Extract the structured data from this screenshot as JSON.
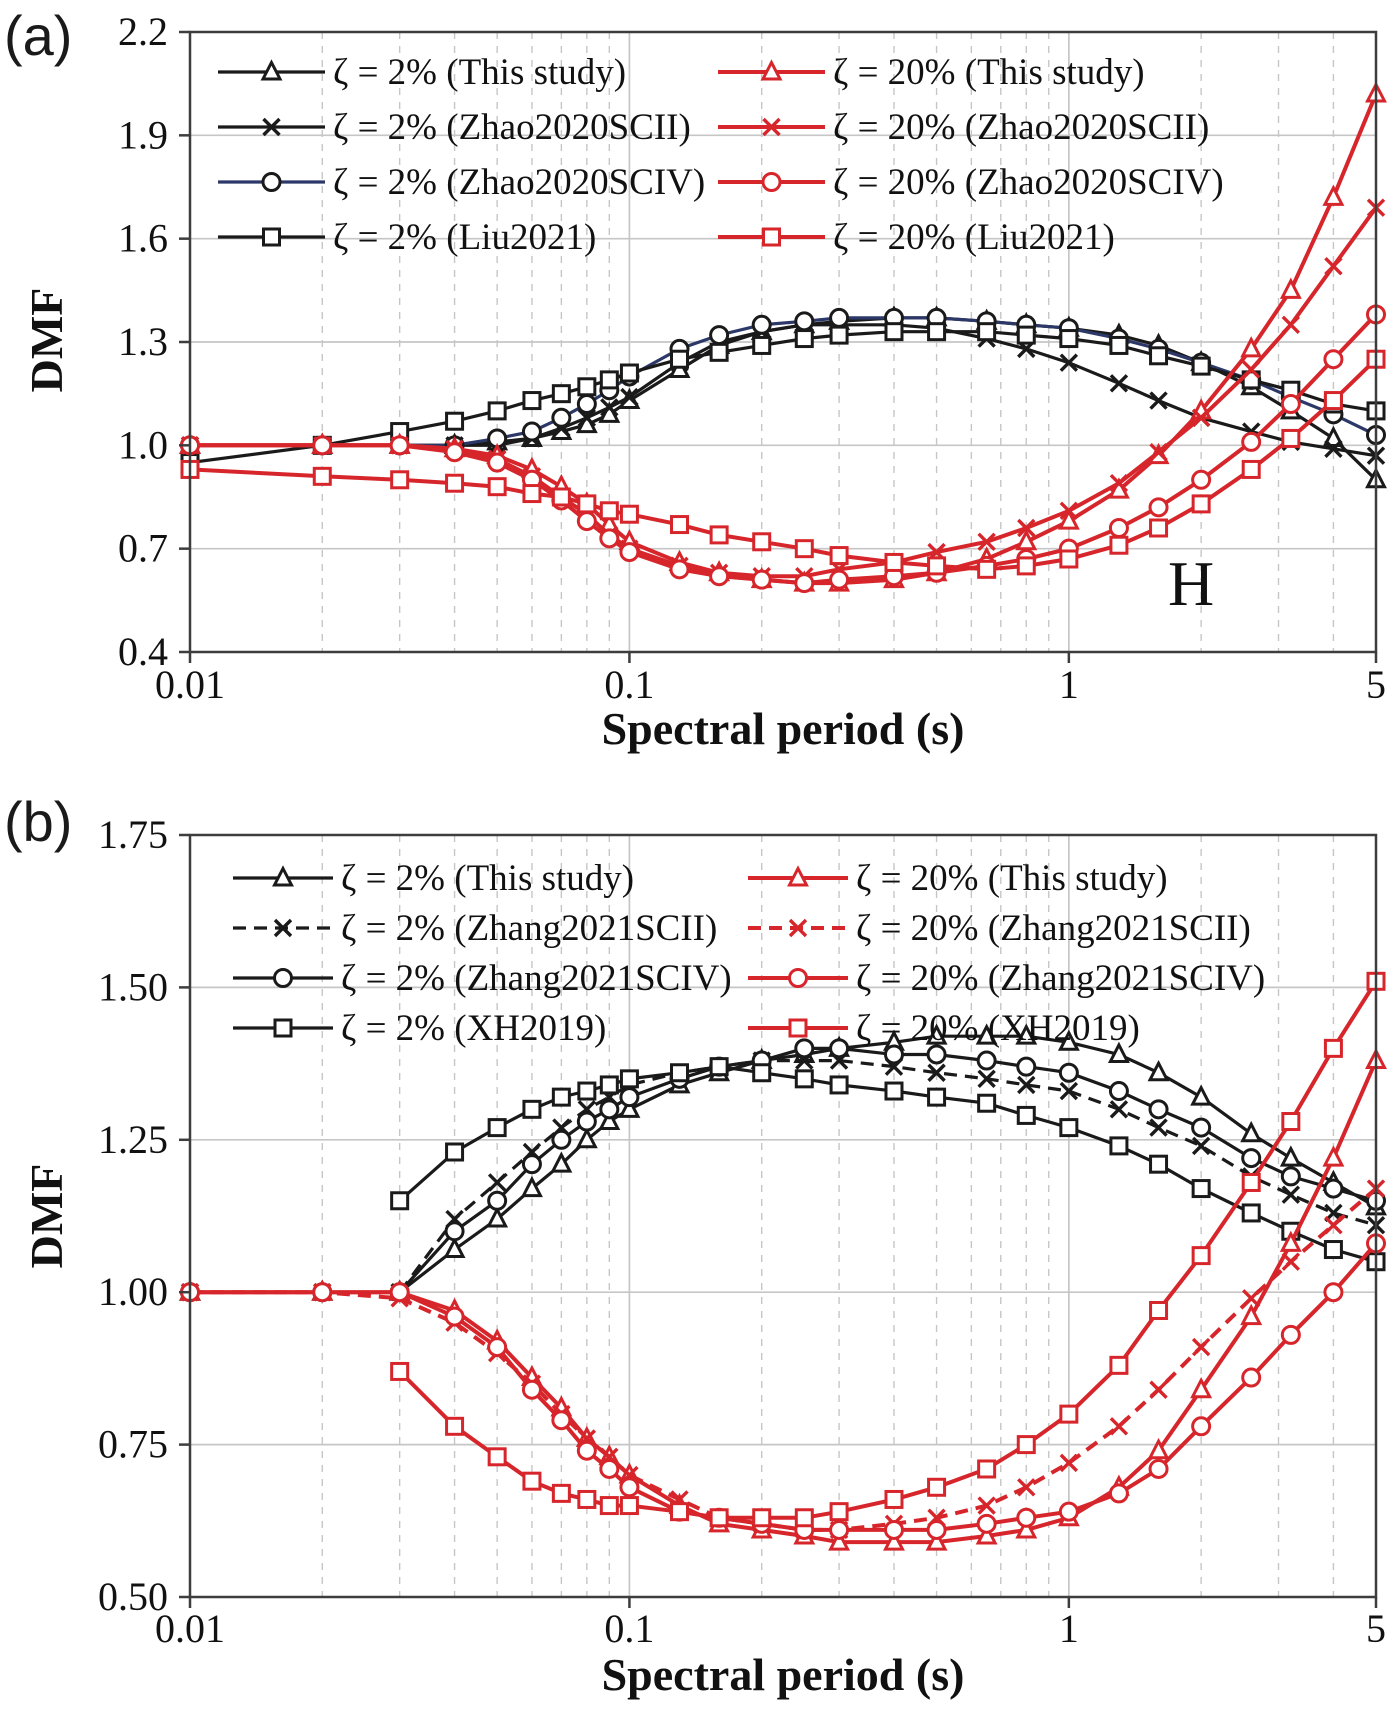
{
  "figure": {
    "background": "#ffffff",
    "panels": [
      "(a)",
      "(b)"
    ]
  },
  "colors": {
    "black": "#1a1a1a",
    "red": "#d7262b",
    "navy": "#2c3968",
    "grid": "#c6c6c6",
    "axis": "#3d3d3d",
    "text": "#111111"
  },
  "chart_data": [
    {
      "panel": "(a)",
      "type": "line",
      "x_scale": "log",
      "xlabel": "Spectral period (s)",
      "ylabel": "DMF",
      "corner_label": "H",
      "xlim": [
        0.01,
        5
      ],
      "ylim": [
        0.4,
        2.2
      ],
      "xticks": [
        0.01,
        0.1,
        1,
        5
      ],
      "xtick_labels": [
        "0.01",
        "0.1",
        "1",
        "5"
      ],
      "yticks": [
        0.4,
        0.7,
        1.0,
        1.3,
        1.6,
        1.9,
        2.2
      ],
      "ytick_labels": [
        "0.4",
        "0.7",
        "1.0",
        "1.3",
        "1.6",
        "1.9",
        "2.2"
      ],
      "grid": "major-solid-minor-dashed",
      "legend": {
        "position": "top-inside",
        "columns": 2
      },
      "x": [
        0.01,
        0.02,
        0.03,
        0.04,
        0.05,
        0.06,
        0.07,
        0.08,
        0.09,
        0.1,
        0.13,
        0.16,
        0.2,
        0.25,
        0.3,
        0.4,
        0.5,
        0.65,
        0.8,
        1.0,
        1.3,
        1.6,
        2.0,
        2.6,
        3.2,
        4.0,
        5.0
      ],
      "series": [
        {
          "name": "ζ = 2% (This study)",
          "color": "black",
          "marker": "triangle",
          "line": "solid",
          "values": [
            1.0,
            1.0,
            1.0,
            1.0,
            1.01,
            1.02,
            1.04,
            1.06,
            1.09,
            1.13,
            1.22,
            1.29,
            1.33,
            1.35,
            1.36,
            1.37,
            1.37,
            1.36,
            1.35,
            1.34,
            1.32,
            1.29,
            1.24,
            1.17,
            1.1,
            1.02,
            0.9
          ]
        },
        {
          "name": "ζ = 2% (Zhao2020SCII)",
          "color": "black",
          "marker": "x",
          "line": "solid",
          "values": [
            1.0,
            1.0,
            1.0,
            1.0,
            1.0,
            1.02,
            1.05,
            1.08,
            1.11,
            1.14,
            1.24,
            1.3,
            1.33,
            1.35,
            1.35,
            1.35,
            1.34,
            1.31,
            1.28,
            1.24,
            1.18,
            1.13,
            1.08,
            1.04,
            1.01,
            0.99,
            0.97
          ]
        },
        {
          "name": "ζ = 2% (Zhao2020SCIV)",
          "color": "navy",
          "marker_color": "black",
          "marker": "circle",
          "line": "solid",
          "values": [
            1.0,
            1.0,
            1.0,
            1.0,
            1.02,
            1.04,
            1.08,
            1.12,
            1.16,
            1.2,
            1.28,
            1.32,
            1.35,
            1.36,
            1.37,
            1.37,
            1.37,
            1.36,
            1.35,
            1.34,
            1.31,
            1.28,
            1.24,
            1.19,
            1.14,
            1.09,
            1.03
          ]
        },
        {
          "name": "ζ = 2% (Liu2021)",
          "color": "black",
          "marker": "square",
          "line": "solid",
          "values": [
            0.95,
            1.0,
            1.04,
            1.07,
            1.1,
            1.13,
            1.15,
            1.17,
            1.19,
            1.21,
            1.25,
            1.27,
            1.29,
            1.31,
            1.32,
            1.33,
            1.33,
            1.33,
            1.32,
            1.31,
            1.29,
            1.26,
            1.23,
            1.19,
            1.16,
            1.12,
            1.1
          ]
        },
        {
          "name": "ζ = 20% (This study)",
          "color": "red",
          "marker": "triangle",
          "line": "solid",
          "values": [
            1.0,
            1.0,
            1.0,
            0.99,
            0.97,
            0.93,
            0.88,
            0.83,
            0.77,
            0.72,
            0.66,
            0.63,
            0.61,
            0.6,
            0.6,
            0.61,
            0.63,
            0.67,
            0.72,
            0.78,
            0.87,
            0.97,
            1.1,
            1.28,
            1.45,
            1.72,
            2.02
          ]
        },
        {
          "name": "ζ = 20% (Zhao2020SCII)",
          "color": "red",
          "marker": "x",
          "line": "solid",
          "values": [
            1.0,
            1.0,
            1.0,
            0.99,
            0.96,
            0.91,
            0.85,
            0.8,
            0.74,
            0.7,
            0.65,
            0.63,
            0.62,
            0.62,
            0.64,
            0.66,
            0.69,
            0.72,
            0.76,
            0.81,
            0.89,
            0.98,
            1.08,
            1.22,
            1.35,
            1.52,
            1.69
          ]
        },
        {
          "name": "ζ = 20% (Zhao2020SCIV)",
          "color": "red",
          "marker": "circle",
          "line": "solid",
          "values": [
            1.0,
            1.0,
            1.0,
            0.98,
            0.95,
            0.9,
            0.84,
            0.78,
            0.73,
            0.69,
            0.64,
            0.62,
            0.61,
            0.6,
            0.61,
            0.62,
            0.63,
            0.65,
            0.67,
            0.7,
            0.76,
            0.82,
            0.9,
            1.01,
            1.12,
            1.25,
            1.38
          ]
        },
        {
          "name": "ζ = 20% (Liu2021)",
          "color": "red",
          "marker": "square",
          "line": "solid",
          "values": [
            0.93,
            0.91,
            0.9,
            0.89,
            0.88,
            0.86,
            0.85,
            0.83,
            0.81,
            0.8,
            0.77,
            0.74,
            0.72,
            0.7,
            0.68,
            0.66,
            0.65,
            0.64,
            0.65,
            0.67,
            0.71,
            0.76,
            0.83,
            0.93,
            1.02,
            1.13,
            1.25
          ]
        }
      ]
    },
    {
      "panel": "(b)",
      "type": "line",
      "x_scale": "log",
      "xlabel": "Spectral period (s)",
      "ylabel": "DMF",
      "corner_label": "",
      "xlim": [
        0.01,
        5
      ],
      "ylim": [
        0.5,
        1.75
      ],
      "xticks": [
        0.01,
        0.1,
        1,
        5
      ],
      "xtick_labels": [
        "0.01",
        "0.1",
        "1",
        "5"
      ],
      "yticks": [
        0.5,
        0.75,
        1.0,
        1.25,
        1.5,
        1.75
      ],
      "ytick_labels": [
        "0.50",
        "0.75",
        "1.00",
        "1.25",
        "1.50",
        "1.75"
      ],
      "grid": "major-solid-minor-dashed",
      "legend": {
        "position": "top-inside",
        "columns": 2
      },
      "x": [
        0.01,
        0.02,
        0.03,
        0.04,
        0.05,
        0.06,
        0.07,
        0.08,
        0.09,
        0.1,
        0.13,
        0.16,
        0.2,
        0.25,
        0.3,
        0.4,
        0.5,
        0.65,
        0.8,
        1.0,
        1.3,
        1.6,
        2.0,
        2.6,
        3.2,
        4.0,
        5.0
      ],
      "series": [
        {
          "name": "ζ = 2% (This study)",
          "color": "black",
          "marker": "triangle",
          "line": "solid",
          "values": [
            1.0,
            1.0,
            1.0,
            1.07,
            1.12,
            1.17,
            1.21,
            1.25,
            1.28,
            1.3,
            1.34,
            1.36,
            1.38,
            1.39,
            1.4,
            1.41,
            1.42,
            1.42,
            1.42,
            1.41,
            1.39,
            1.36,
            1.32,
            1.26,
            1.22,
            1.18,
            1.14
          ]
        },
        {
          "name": "ζ = 2% (Zhang2021SCII)",
          "color": "black",
          "marker": "x",
          "line": "dashed",
          "values": [
            1.0,
            1.0,
            1.0,
            1.12,
            1.18,
            1.23,
            1.27,
            1.3,
            1.32,
            1.34,
            1.36,
            1.37,
            1.38,
            1.38,
            1.38,
            1.37,
            1.36,
            1.35,
            1.34,
            1.33,
            1.3,
            1.27,
            1.24,
            1.19,
            1.16,
            1.13,
            1.11
          ]
        },
        {
          "name": "ζ = 2% (Zhang2021SCIV)",
          "color": "black",
          "marker": "circle",
          "line": "solid",
          "values": [
            1.0,
            1.0,
            1.0,
            1.1,
            1.15,
            1.21,
            1.25,
            1.28,
            1.3,
            1.32,
            1.35,
            1.37,
            1.38,
            1.4,
            1.4,
            1.39,
            1.39,
            1.38,
            1.37,
            1.36,
            1.33,
            1.3,
            1.27,
            1.22,
            1.19,
            1.17,
            1.15
          ]
        },
        {
          "name": "ζ = 2% (XH2019)",
          "color": "black",
          "marker": "square",
          "line": "solid",
          "values": [
            null,
            null,
            1.15,
            1.23,
            1.27,
            1.3,
            1.32,
            1.33,
            1.34,
            1.35,
            1.36,
            1.37,
            1.36,
            1.35,
            1.34,
            1.33,
            1.32,
            1.31,
            1.29,
            1.27,
            1.24,
            1.21,
            1.17,
            1.13,
            1.1,
            1.07,
            1.05
          ]
        },
        {
          "name": "ζ = 20% (This study)",
          "color": "red",
          "marker": "triangle",
          "line": "solid",
          "values": [
            1.0,
            1.0,
            1.0,
            0.97,
            0.92,
            0.86,
            0.81,
            0.76,
            0.73,
            0.7,
            0.65,
            0.62,
            0.61,
            0.6,
            0.59,
            0.59,
            0.59,
            0.6,
            0.61,
            0.63,
            0.68,
            0.74,
            0.84,
            0.96,
            1.08,
            1.22,
            1.38
          ]
        },
        {
          "name": "ζ = 20% (Zhang2021SCII)",
          "color": "red",
          "marker": "x",
          "line": "dashed",
          "values": [
            1.0,
            1.0,
            0.99,
            0.95,
            0.9,
            0.85,
            0.8,
            0.76,
            0.73,
            0.7,
            0.66,
            0.63,
            0.62,
            0.61,
            0.61,
            0.62,
            0.63,
            0.65,
            0.68,
            0.72,
            0.78,
            0.84,
            0.91,
            0.99,
            1.05,
            1.11,
            1.17
          ]
        },
        {
          "name": "ζ = 20% (Zhang2021SCIV)",
          "color": "red",
          "marker": "circle",
          "line": "solid",
          "values": [
            1.0,
            1.0,
            1.0,
            0.96,
            0.91,
            0.84,
            0.79,
            0.74,
            0.71,
            0.68,
            0.64,
            0.63,
            0.62,
            0.61,
            0.61,
            0.61,
            0.61,
            0.62,
            0.63,
            0.64,
            0.67,
            0.71,
            0.78,
            0.86,
            0.93,
            1.0,
            1.08
          ]
        },
        {
          "name": "ζ = 20% (XH2019)",
          "color": "red",
          "marker": "square",
          "line": "solid",
          "values": [
            null,
            null,
            0.87,
            0.78,
            0.73,
            0.69,
            0.67,
            0.66,
            0.65,
            0.65,
            0.64,
            0.63,
            0.63,
            0.63,
            0.64,
            0.66,
            0.68,
            0.71,
            0.75,
            0.8,
            0.88,
            0.97,
            1.06,
            1.18,
            1.28,
            1.4,
            1.51
          ]
        }
      ]
    }
  ]
}
